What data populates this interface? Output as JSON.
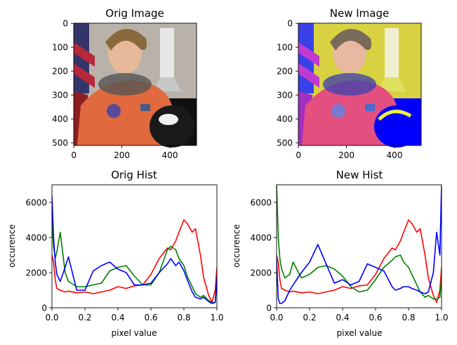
{
  "figure": {
    "panels": [
      {
        "title": "Orig Image"
      },
      {
        "title": "New Image"
      }
    ]
  },
  "chart_data": [
    {
      "type": "image",
      "title": "Orig Image",
      "xlim": [
        0,
        512
      ],
      "ylim": [
        512,
        0
      ],
      "xticks": [
        0,
        200,
        400
      ],
      "yticks": [
        0,
        100,
        200,
        300,
        400,
        500
      ],
      "palette": {
        "bg": "#b8b2aa",
        "suit": "#e06a3e",
        "flag_red": "#b8283a",
        "flag_blue": "#33356a",
        "helmet": "#1a1a1a"
      }
    },
    {
      "type": "image",
      "title": "New Image",
      "xlim": [
        0,
        512
      ],
      "ylim": [
        512,
        0
      ],
      "xticks": [
        0,
        200,
        400
      ],
      "yticks": [
        0,
        100,
        200,
        300,
        400,
        500
      ],
      "palette": {
        "bg": "#d8d242",
        "suit": "#e35080",
        "flag_red": "#c03ad0",
        "flag_blue": "#3a40e8",
        "helmet": "#0000ff"
      }
    },
    {
      "type": "line",
      "title": "Orig Hist",
      "xlabel": "pixel value",
      "ylabel": "occurence",
      "xlim": [
        0,
        1
      ],
      "ylim": [
        0,
        7000
      ],
      "xticks": [
        "0.0",
        "0.2",
        "0.4",
        "0.6",
        "0.8",
        "1.0"
      ],
      "yticks": [
        "0",
        "2000",
        "4000",
        "6000"
      ],
      "x": [
        0.0,
        0.01,
        0.02,
        0.03,
        0.05,
        0.08,
        0.1,
        0.15,
        0.2,
        0.25,
        0.3,
        0.35,
        0.4,
        0.45,
        0.5,
        0.55,
        0.6,
        0.65,
        0.7,
        0.72,
        0.75,
        0.77,
        0.8,
        0.82,
        0.85,
        0.87,
        0.9,
        0.92,
        0.95,
        0.97,
        0.99,
        1.0
      ],
      "series": [
        {
          "color": "#ff0000",
          "values": [
            3000,
            2600,
            1600,
            1100,
            1000,
            900,
            950,
            850,
            900,
            800,
            900,
            1000,
            1200,
            1100,
            1250,
            1300,
            1900,
            2800,
            3400,
            3300,
            3800,
            4300,
            5000,
            4800,
            4300,
            4500,
            3000,
            1700,
            700,
            300,
            1000,
            2300
          ]
        },
        {
          "color": "#008000",
          "values": [
            5000,
            3500,
            2800,
            3200,
            4300,
            2000,
            1500,
            1200,
            1200,
            1300,
            1400,
            2100,
            2300,
            2400,
            1800,
            1300,
            1300,
            2000,
            3300,
            3500,
            3300,
            2800,
            2400,
            1800,
            1200,
            800,
            600,
            700,
            400,
            300,
            300,
            1400
          ]
        },
        {
          "color": "#0000ff",
          "values": [
            6400,
            4000,
            2600,
            1900,
            1500,
            2300,
            2900,
            1000,
            1000,
            2100,
            2400,
            2600,
            2200,
            2000,
            1300,
            1300,
            1400,
            2000,
            2500,
            2800,
            2400,
            2600,
            2100,
            1600,
            900,
            600,
            500,
            600,
            350,
            250,
            300,
            1800
          ]
        }
      ]
    },
    {
      "type": "line",
      "title": "New Hist",
      "xlabel": "pixel value",
      "ylabel": "occurence",
      "xlim": [
        0,
        1
      ],
      "ylim": [
        0,
        7000
      ],
      "xticks": [
        "0.0",
        "0.2",
        "0.4",
        "0.6",
        "0.8",
        "1.0"
      ],
      "yticks": [
        "0",
        "2000",
        "4000",
        "6000"
      ],
      "x": [
        0.0,
        0.01,
        0.02,
        0.03,
        0.05,
        0.08,
        0.1,
        0.15,
        0.2,
        0.25,
        0.3,
        0.35,
        0.4,
        0.45,
        0.5,
        0.55,
        0.6,
        0.65,
        0.7,
        0.72,
        0.75,
        0.77,
        0.8,
        0.82,
        0.85,
        0.87,
        0.9,
        0.92,
        0.95,
        0.97,
        0.99,
        1.0
      ],
      "series": [
        {
          "color": "#ff0000",
          "values": [
            3000,
            2600,
            1600,
            1100,
            1000,
            900,
            950,
            850,
            900,
            800,
            900,
            1000,
            1200,
            1100,
            1250,
            1300,
            1900,
            2800,
            3400,
            3300,
            3800,
            4300,
            5000,
            4800,
            4300,
            4500,
            3000,
            1700,
            700,
            300,
            1000,
            2300
          ]
        },
        {
          "color": "#008000",
          "values": [
            7000,
            4000,
            2800,
            2200,
            1700,
            1900,
            2600,
            1700,
            1900,
            2300,
            2400,
            2200,
            1800,
            1200,
            900,
            1000,
            1600,
            2300,
            2700,
            2900,
            3000,
            2600,
            2300,
            1900,
            1300,
            900,
            600,
            700,
            500,
            500,
            600,
            1700
          ]
        },
        {
          "color": "#0000ff",
          "values": [
            2800,
            500,
            250,
            250,
            400,
            1000,
            1300,
            2000,
            2600,
            3600,
            2500,
            1400,
            1600,
            1300,
            1500,
            2500,
            2300,
            2100,
            1200,
            1000,
            1100,
            1200,
            1200,
            1100,
            1000,
            900,
            800,
            900,
            2000,
            4300,
            3000,
            7000
          ]
        }
      ]
    }
  ]
}
